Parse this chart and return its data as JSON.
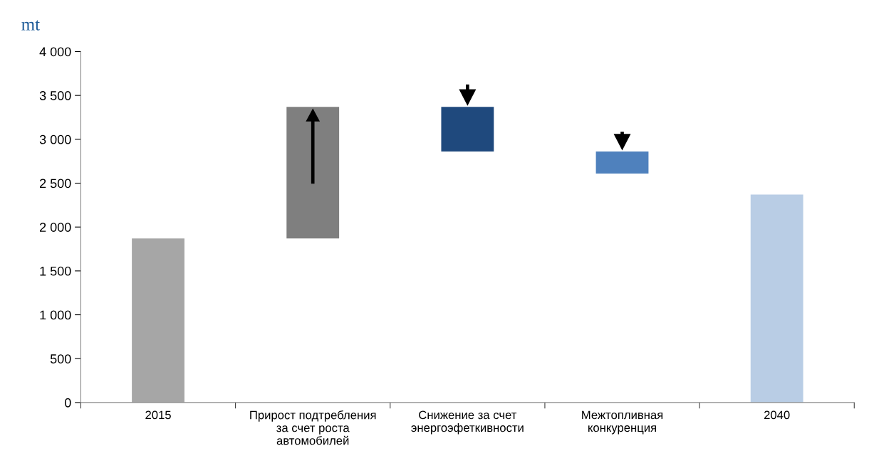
{
  "chart_data": {
    "type": "bar",
    "ylabel": "mt",
    "categories": [
      "2015",
      "Прирост подтребления за счет роста автомобилей",
      "Снижение за счет энергоэфеткивности",
      "Межтопливная конкуренция",
      "2040"
    ],
    "values": [
      1870,
      1500,
      510,
      250,
      2370
    ],
    "base": [
      0,
      1870,
      2860,
      2610,
      0
    ],
    "colors": [
      "#a6a6a6",
      "#7f7f7f",
      "#1f497d",
      "#4f81bd",
      "#b9cde5"
    ],
    "ylim": [
      0,
      4000
    ],
    "yticks": [
      0,
      500,
      {
        "value": 1000,
        "label": "1 000"
      },
      {
        "value": 1500,
        "label": "1 500"
      },
      {
        "value": 2000,
        "label": "2 000"
      },
      {
        "value": 2500,
        "label": "2 500"
      },
      {
        "value": 3000,
        "label": "3 000"
      },
      {
        "value": 3500,
        "label": "3 500"
      },
      {
        "value": 4000,
        "label": "4 000"
      }
    ],
    "grid": false,
    "legend": false
  }
}
